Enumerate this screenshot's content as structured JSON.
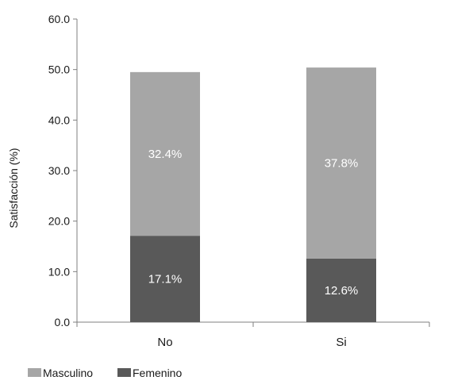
{
  "chart_data": {
    "type": "bar",
    "stacked": true,
    "categories": [
      "No",
      "Si"
    ],
    "series": [
      {
        "name": "Femenino",
        "values": [
          17.1,
          12.6
        ],
        "labels": [
          "17.1%",
          "12.6%"
        ],
        "color": "#595959"
      },
      {
        "name": "Masculino",
        "values": [
          32.4,
          37.8
        ],
        "labels": [
          "32.4%",
          "37.8%"
        ],
        "color": "#a6a6a6"
      }
    ],
    "ylabel": "Satisfacción (%)",
    "xlabel": "",
    "ylim": [
      0,
      60
    ],
    "yticks": [
      "0.0",
      "10.0",
      "20.0",
      "30.0",
      "40.0",
      "50.0",
      "60.0"
    ],
    "grid": false,
    "legend": {
      "placement": "bottom-left",
      "items": [
        {
          "name": "Masculino",
          "color": "#a6a6a6"
        },
        {
          "name": "Femenino",
          "color": "#595959"
        }
      ]
    }
  }
}
